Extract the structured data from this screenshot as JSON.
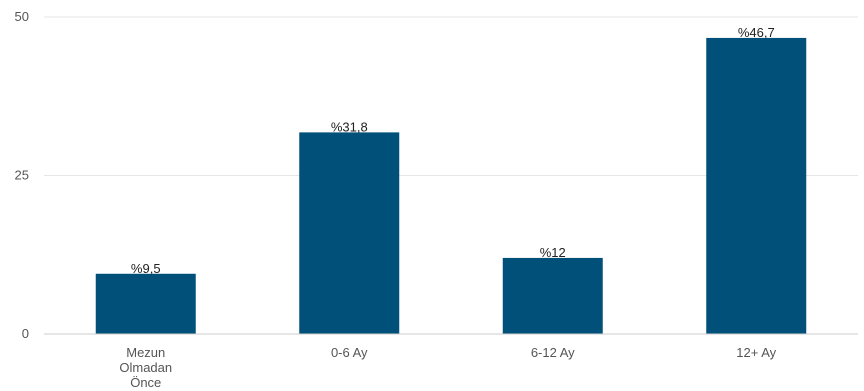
{
  "chart_data": {
    "type": "bar",
    "categories": [
      [
        "Mezun",
        "Olmadan",
        "Önce"
      ],
      [
        "0-6 Ay"
      ],
      [
        "6-12 Ay"
      ],
      [
        "12+ Ay"
      ]
    ],
    "values": [
      9.5,
      31.8,
      12,
      46.7
    ],
    "data_labels": [
      "%9,5",
      "%31,8",
      "%12",
      "%46,7"
    ],
    "y_ticks": [
      0,
      25,
      50
    ],
    "ylim": [
      0,
      50
    ],
    "grid": true,
    "legend": "none",
    "colors": {
      "bar": "#00507a"
    }
  }
}
